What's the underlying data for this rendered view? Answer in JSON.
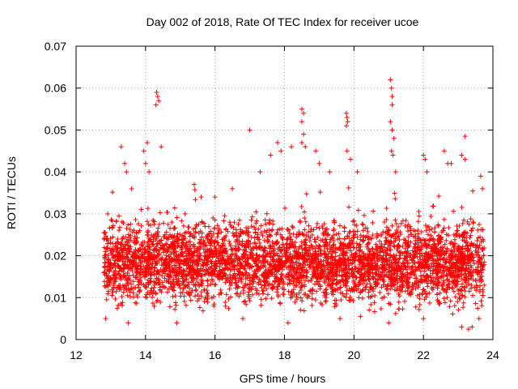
{
  "chart_data": {
    "type": "scatter",
    "title": "Day 002 of 2018, Rate Of TEC Index for receiver ucoe",
    "xlabel": "GPS time / hours",
    "ylabel": "ROTI / TECUs",
    "xlim": [
      12,
      24
    ],
    "ylim": [
      0,
      0.07
    ],
    "xticks": [
      12,
      14,
      16,
      18,
      20,
      22,
      24
    ],
    "xtick_labels": [
      "12",
      "14",
      "16",
      "18",
      "20",
      "22",
      "24"
    ],
    "yticks": [
      0,
      0.01,
      0.02,
      0.03,
      0.04,
      0.05,
      0.06,
      0.07
    ],
    "ytick_labels": [
      "0",
      "0.01",
      "0.02",
      "0.03",
      "0.04",
      "0.05",
      "0.06",
      "0.07"
    ],
    "grid": true,
    "marker": "+",
    "color": "#ff0000",
    "data_x_range": [
      12.8,
      23.75
    ],
    "bulk_band": [
      0.005,
      0.03
    ],
    "series": [
      {
        "name": "ROTI",
        "points": [
          [
            13.3,
            0.046
          ],
          [
            13.4,
            0.042
          ],
          [
            13.45,
            0.04
          ],
          [
            13.6,
            0.036
          ],
          [
            13.95,
            0.045
          ],
          [
            14.0,
            0.042
          ],
          [
            14.05,
            0.047
          ],
          [
            14.1,
            0.04
          ],
          [
            14.32,
            0.059
          ],
          [
            14.35,
            0.058
          ],
          [
            14.38,
            0.057
          ],
          [
            14.3,
            0.056
          ],
          [
            14.45,
            0.046
          ],
          [
            15.4,
            0.037
          ],
          [
            15.6,
            0.034
          ],
          [
            16.0,
            0.034
          ],
          [
            16.5,
            0.036
          ],
          [
            17.0,
            0.05
          ],
          [
            17.3,
            0.04
          ],
          [
            17.6,
            0.044
          ],
          [
            17.8,
            0.047
          ],
          [
            17.9,
            0.045
          ],
          [
            18.2,
            0.046
          ],
          [
            18.5,
            0.055
          ],
          [
            18.55,
            0.054
          ],
          [
            18.5,
            0.052
          ],
          [
            18.55,
            0.049
          ],
          [
            18.5,
            0.047
          ],
          [
            18.6,
            0.046
          ],
          [
            18.9,
            0.045
          ],
          [
            19.0,
            0.042
          ],
          [
            19.3,
            0.04
          ],
          [
            19.78,
            0.054
          ],
          [
            19.8,
            0.053
          ],
          [
            19.82,
            0.052
          ],
          [
            19.78,
            0.051
          ],
          [
            19.8,
            0.045
          ],
          [
            19.9,
            0.043
          ],
          [
            20.1,
            0.04
          ],
          [
            21.05,
            0.062
          ],
          [
            21.08,
            0.06
          ],
          [
            21.1,
            0.058
          ],
          [
            21.1,
            0.056
          ],
          [
            21.05,
            0.052
          ],
          [
            21.1,
            0.05
          ],
          [
            21.15,
            0.048
          ],
          [
            21.08,
            0.045
          ],
          [
            21.12,
            0.044
          ],
          [
            21.2,
            0.04
          ],
          [
            22.0,
            0.044
          ],
          [
            22.05,
            0.043
          ],
          [
            22.1,
            0.04
          ],
          [
            22.6,
            0.045
          ],
          [
            22.7,
            0.042
          ],
          [
            22.8,
            0.042
          ],
          [
            23.1,
            0.044
          ],
          [
            23.2,
            0.0485
          ],
          [
            23.2,
            0.043
          ],
          [
            23.65,
            0.039
          ],
          [
            23.7,
            0.036
          ],
          [
            12.85,
            0.005
          ],
          [
            13.5,
            0.004
          ],
          [
            14.9,
            0.004
          ],
          [
            16.8,
            0.005
          ],
          [
            18.1,
            0.004
          ],
          [
            19.6,
            0.005
          ],
          [
            21.0,
            0.004
          ],
          [
            22.0,
            0.005
          ],
          [
            23.1,
            0.003
          ],
          [
            23.3,
            0.0025
          ],
          [
            23.4,
            0.003
          ],
          [
            23.6,
            0.005
          ]
        ]
      }
    ]
  }
}
